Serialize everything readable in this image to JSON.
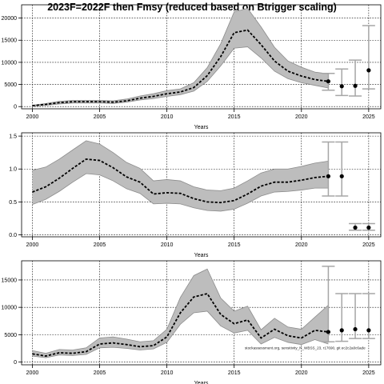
{
  "title": "2023F=2022F then Fmsy (reduced based on Btrigger scaling)",
  "watermark": "stockassessment.org, sensitivity_N_WBSS_23, r17690, git ec2c2a0c6ade",
  "colors": {
    "band": "#bdbdbd",
    "band_edge": "#8c8c8c",
    "line": "#000000",
    "grid": "#000000",
    "ci": "#a6a6a6"
  },
  "chart_data": [
    {
      "type": "line",
      "panel": "top",
      "xlabel": "Years",
      "ylabel": "",
      "xlim": [
        1999.2,
        2025.9
      ],
      "ylim": [
        -500,
        23000
      ],
      "xticks": [
        2000,
        2005,
        2010,
        2015,
        2020,
        2025
      ],
      "yticks": [
        0,
        5000,
        10000,
        15000,
        20000
      ],
      "ytick_labels": [
        "0",
        "5000",
        "10000",
        "15000",
        "20000"
      ],
      "series": [
        {
          "x": [
            2000,
            2001,
            2002,
            2003,
            2004,
            2005,
            2006,
            2007,
            2008,
            2009,
            2010,
            2011,
            2012,
            2013,
            2014,
            2015,
            2016,
            2017,
            2018,
            2019,
            2020,
            2021,
            2022
          ],
          "values": [
            200,
            500,
            900,
            1100,
            1100,
            1100,
            1000,
            1300,
            1900,
            2300,
            2900,
            3300,
            4300,
            7000,
            11300,
            16700,
            17300,
            14000,
            10300,
            8000,
            6900,
            6100,
            5700
          ],
          "lower": [
            100,
            300,
            600,
            800,
            800,
            800,
            700,
            1000,
            1500,
            1800,
            2300,
            2700,
            3500,
            5700,
            9200,
            13200,
            13500,
            11000,
            8000,
            6300,
            5400,
            4800,
            4200
          ],
          "upper": [
            300,
            700,
            1200,
            1400,
            1400,
            1400,
            1300,
            1700,
            2400,
            2900,
            3600,
            4000,
            5400,
            8800,
            14200,
            21400,
            22200,
            18000,
            13400,
            10300,
            8900,
            7800,
            7400
          ]
        }
      ],
      "forecast": [
        {
          "x": 2022,
          "mid": 5700,
          "lower": 3700,
          "upper": 7500
        },
        {
          "x": 2023,
          "mid": 4600,
          "lower": 2500,
          "upper": 8500
        },
        {
          "x": 2024,
          "mid": 4700,
          "lower": 2400,
          "upper": 10500
        },
        {
          "x": 2025,
          "mid": 8200,
          "lower": 4000,
          "upper": 18300
        }
      ]
    },
    {
      "type": "line",
      "panel": "middle",
      "xlabel": "Years",
      "ylabel": "",
      "xlim": [
        1999.2,
        2025.9
      ],
      "ylim": [
        -0.03,
        1.55
      ],
      "xticks": [
        2000,
        2005,
        2010,
        2015,
        2020,
        2025
      ],
      "yticks": [
        0.0,
        0.5,
        1.0,
        1.5
      ],
      "ytick_labels": [
        "0.0",
        "0.5",
        "1.0",
        "1.5"
      ],
      "series": [
        {
          "x": [
            2000,
            2001,
            2002,
            2003,
            2004,
            2005,
            2006,
            2007,
            2008,
            2009,
            2010,
            2011,
            2012,
            2013,
            2014,
            2015,
            2016,
            2017,
            2018,
            2019,
            2020,
            2021,
            2022
          ],
          "values": [
            0.65,
            0.73,
            0.86,
            1.01,
            1.15,
            1.13,
            1.02,
            0.88,
            0.8,
            0.62,
            0.64,
            0.63,
            0.55,
            0.5,
            0.49,
            0.52,
            0.62,
            0.74,
            0.8,
            0.8,
            0.83,
            0.87,
            0.89
          ],
          "lower": [
            0.46,
            0.54,
            0.66,
            0.8,
            0.93,
            0.91,
            0.82,
            0.7,
            0.63,
            0.47,
            0.48,
            0.47,
            0.41,
            0.37,
            0.36,
            0.39,
            0.48,
            0.59,
            0.65,
            0.66,
            0.68,
            0.71,
            0.71
          ],
          "upper": [
            0.98,
            1.03,
            1.15,
            1.29,
            1.43,
            1.38,
            1.25,
            1.1,
            1.01,
            0.82,
            0.84,
            0.82,
            0.73,
            0.68,
            0.67,
            0.71,
            0.82,
            0.94,
            1.0,
            1.0,
            1.04,
            1.09,
            1.12
          ]
        }
      ],
      "forecast": [
        {
          "x": 2022,
          "mid": 0.89,
          "lower": 0.59,
          "upper": 1.41
        },
        {
          "x": 2023,
          "mid": 0.89,
          "lower": 0.59,
          "upper": 1.41
        },
        {
          "x": 2024,
          "mid": 0.11,
          "lower": 0.07,
          "upper": 0.17
        },
        {
          "x": 2025,
          "mid": 0.11,
          "lower": 0.07,
          "upper": 0.17
        }
      ]
    },
    {
      "type": "line",
      "panel": "bottom",
      "xlabel": "Years",
      "ylabel": "",
      "xlim": [
        1999.2,
        2025.9
      ],
      "ylim": [
        -500,
        18500
      ],
      "xticks": [
        2000,
        2005,
        2010,
        2015,
        2020,
        2025
      ],
      "yticks": [
        0,
        5000,
        10000,
        15000
      ],
      "ytick_labels": [
        "0",
        "5000",
        "10000",
        "15000"
      ],
      "series": [
        {
          "x": [
            2000,
            2001,
            2002,
            2003,
            2004,
            2005,
            2006,
            2007,
            2008,
            2009,
            2010,
            2011,
            2012,
            2013,
            2014,
            2015,
            2016,
            2017,
            2018,
            2019,
            2020,
            2021,
            2022
          ],
          "values": [
            1500,
            1100,
            1700,
            1600,
            1900,
            3300,
            3500,
            3200,
            2800,
            3000,
            4600,
            9000,
            11900,
            12500,
            8700,
            7000,
            7700,
            4400,
            6000,
            4800,
            4400,
            5800,
            5500
          ],
          "lower": [
            1100,
            800,
            1300,
            1200,
            1400,
            2600,
            2700,
            2500,
            2200,
            2400,
            3600,
            6900,
            9000,
            9300,
            6600,
            5300,
            5800,
            3300,
            4500,
            3600,
            3200,
            4100,
            3300
          ],
          "upper": [
            2100,
            1600,
            2300,
            2200,
            2600,
            4400,
            4600,
            4200,
            3700,
            3900,
            6000,
            11800,
            15800,
            17000,
            11700,
            9300,
            10200,
            5900,
            8000,
            6400,
            6000,
            8200,
            10400
          ]
        }
      ],
      "forecast": [
        {
          "x": 2022,
          "mid": 5500,
          "lower": 3700,
          "upper": 17500
        },
        {
          "x": 2023,
          "mid": 5800,
          "lower": 3800,
          "upper": 12500
        },
        {
          "x": 2024,
          "mid": 6000,
          "lower": 4300,
          "upper": 12500
        },
        {
          "x": 2025,
          "mid": 5800,
          "lower": 4300,
          "upper": 12500
        }
      ]
    }
  ]
}
